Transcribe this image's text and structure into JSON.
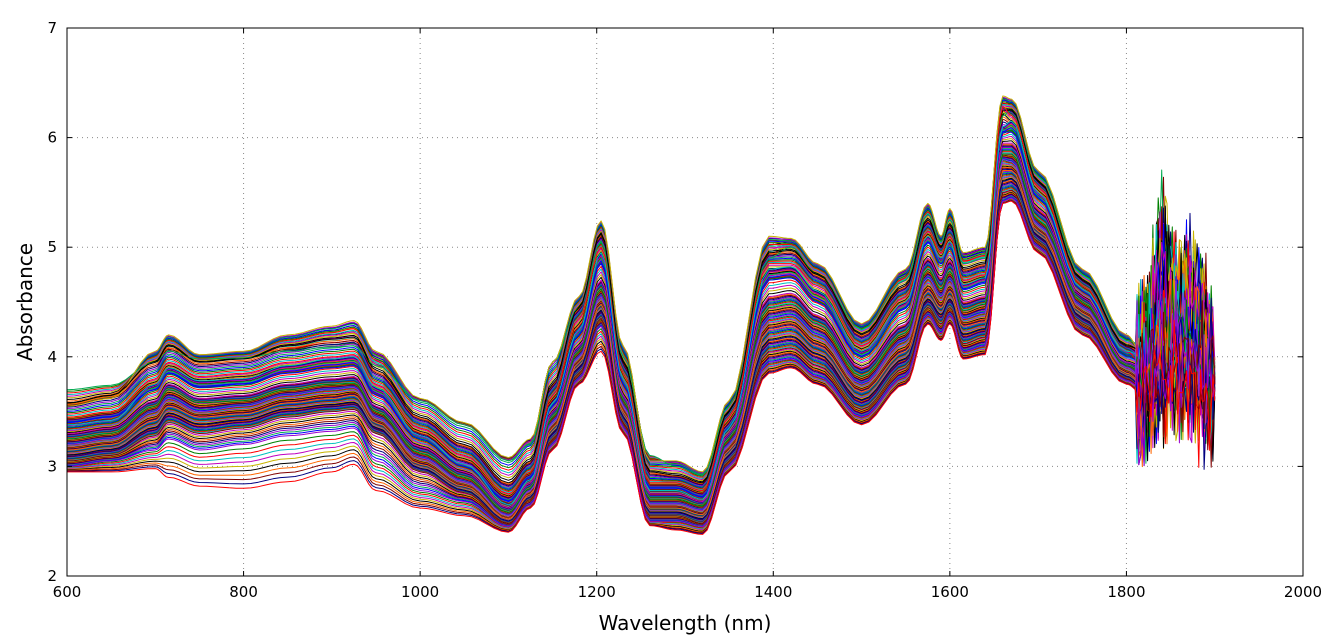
{
  "chart_data": {
    "type": "line",
    "title": "",
    "xlabel": "Wavelength (nm)",
    "ylabel": "Absorbance",
    "xlim": [
      600,
      2000
    ],
    "ylim": [
      2,
      7
    ],
    "xticks": [
      "600",
      "800",
      "1000",
      "1200",
      "1400",
      "1600",
      "1800",
      "2000"
    ],
    "yticks": [
      "2",
      "3",
      "4",
      "5",
      "6",
      "7"
    ],
    "grid": true,
    "legend": "none",
    "x": [
      600,
      650,
      700,
      715,
      750,
      800,
      850,
      900,
      925,
      950,
      1000,
      1050,
      1100,
      1125,
      1150,
      1180,
      1205,
      1230,
      1260,
      1290,
      1320,
      1350,
      1395,
      1420,
      1450,
      1500,
      1550,
      1575,
      1590,
      1600,
      1615,
      1640,
      1660,
      1670,
      1700,
      1750,
      1800,
      1820,
      1840,
      1860,
      1880,
      1900
    ],
    "series_count_note": "",
    "series": [
      {
        "color": "#00a94f",
        "values": [
          3.7,
          3.74,
          3.95,
          4.05,
          3.98,
          3.99,
          4.05,
          4.09,
          4.1,
          3.92,
          3.6,
          3.38,
          3.05,
          3.2,
          3.95,
          4.45,
          5.05,
          4.0,
          3.1,
          3.0,
          2.92,
          3.55,
          4.9,
          5.0,
          4.75,
          4.25,
          4.7,
          5.3,
          5.05,
          5.25,
          4.85,
          4.9,
          6.2,
          6.25,
          5.65,
          4.75,
          4.15,
          4.1,
          4.4,
          4.1,
          4.2,
          3.9
        ]
      },
      {
        "color": "#c8b400",
        "values": [
          3.55,
          3.62,
          4.05,
          4.2,
          4.02,
          4.05,
          4.2,
          4.28,
          4.33,
          4.05,
          3.62,
          3.4,
          3.08,
          3.25,
          3.95,
          4.55,
          5.24,
          4.1,
          3.05,
          3.05,
          2.95,
          3.6,
          5.1,
          5.08,
          4.85,
          4.3,
          4.8,
          5.4,
          5.1,
          5.35,
          4.95,
          5.0,
          6.38,
          6.35,
          5.7,
          4.8,
          4.2,
          4.0,
          5.1,
          4.6,
          4.7,
          4.0
        ]
      },
      {
        "color": "#000000",
        "values": [
          3.58,
          3.65,
          3.95,
          4.1,
          3.95,
          3.98,
          4.1,
          4.16,
          4.18,
          3.88,
          3.45,
          3.2,
          2.85,
          3.05,
          3.75,
          4.45,
          5.12,
          3.95,
          2.95,
          2.92,
          2.85,
          3.5,
          4.95,
          4.97,
          4.75,
          4.2,
          4.65,
          5.25,
          5.0,
          5.2,
          4.8,
          4.85,
          6.25,
          6.25,
          5.6,
          4.7,
          4.1,
          4.05,
          4.8,
          4.3,
          4.5,
          3.8
        ]
      },
      {
        "color": "#ff0000",
        "values": [
          3.45,
          3.5,
          3.8,
          3.95,
          3.82,
          3.85,
          3.95,
          4.0,
          4.02,
          3.75,
          3.35,
          3.1,
          2.75,
          2.95,
          3.65,
          4.35,
          5.0,
          3.85,
          2.85,
          2.85,
          2.78,
          3.45,
          4.85,
          4.85,
          4.65,
          4.1,
          4.55,
          5.15,
          4.95,
          5.1,
          4.7,
          4.75,
          6.28,
          6.2,
          5.55,
          4.65,
          4.05,
          3.9,
          4.4,
          4.1,
          4.0,
          3.7
        ]
      },
      {
        "color": "#0000ff",
        "values": [
          3.4,
          3.45,
          3.7,
          3.85,
          3.72,
          3.75,
          3.85,
          3.9,
          3.92,
          3.65,
          3.25,
          3.0,
          2.68,
          2.9,
          3.55,
          4.2,
          4.85,
          3.75,
          2.8,
          2.8,
          2.72,
          3.35,
          4.7,
          4.72,
          4.5,
          4.0,
          4.45,
          5.05,
          4.85,
          5.0,
          4.62,
          4.68,
          6.05,
          6.05,
          5.45,
          4.6,
          4.0,
          3.95,
          4.6,
          4.2,
          4.3,
          3.85
        ]
      },
      {
        "color": "#00bfbf",
        "values": [
          3.38,
          3.42,
          3.75,
          3.9,
          3.78,
          3.8,
          3.92,
          3.98,
          4.0,
          3.72,
          3.28,
          3.02,
          2.65,
          2.88,
          3.58,
          4.25,
          4.95,
          3.8,
          2.78,
          2.78,
          2.7,
          3.35,
          4.8,
          4.82,
          4.6,
          4.05,
          4.5,
          5.1,
          4.9,
          5.05,
          4.66,
          4.72,
          6.1,
          6.15,
          5.5,
          4.62,
          4.05,
          4.0,
          4.3,
          4.15,
          4.1,
          3.8
        ]
      },
      {
        "color": "#bf00bf",
        "values": [
          3.3,
          3.35,
          3.6,
          3.75,
          3.62,
          3.65,
          3.75,
          3.8,
          3.82,
          3.55,
          3.18,
          2.95,
          2.62,
          2.85,
          3.5,
          4.1,
          4.7,
          3.65,
          2.75,
          2.75,
          2.68,
          3.3,
          4.55,
          4.58,
          4.38,
          3.9,
          4.3,
          4.9,
          4.72,
          4.88,
          4.5,
          4.55,
          5.95,
          5.95,
          5.35,
          4.55,
          3.95,
          3.9,
          4.9,
          4.25,
          4.6,
          3.75
        ]
      },
      {
        "color": "#008000",
        "values": [
          3.25,
          3.3,
          3.55,
          3.7,
          3.58,
          3.6,
          3.7,
          3.75,
          3.76,
          3.5,
          3.12,
          2.9,
          2.58,
          2.8,
          3.45,
          4.05,
          4.62,
          3.6,
          2.7,
          2.7,
          2.64,
          3.25,
          4.45,
          4.48,
          4.3,
          3.82,
          4.22,
          4.8,
          4.62,
          4.78,
          4.42,
          4.48,
          5.85,
          5.85,
          5.25,
          4.5,
          3.92,
          3.85,
          4.2,
          4.35,
          4.15,
          3.9
        ]
      },
      {
        "color": "#8a2be2",
        "values": [
          3.2,
          3.25,
          3.5,
          3.62,
          3.5,
          3.55,
          3.65,
          3.7,
          3.72,
          3.45,
          3.08,
          2.86,
          2.55,
          2.78,
          3.4,
          4.0,
          4.55,
          3.55,
          2.66,
          2.66,
          2.6,
          3.2,
          4.35,
          4.38,
          4.2,
          3.75,
          4.15,
          4.72,
          4.55,
          4.7,
          4.35,
          4.4,
          5.8,
          5.78,
          5.2,
          4.45,
          3.9,
          3.8,
          4.0,
          4.2,
          4.05,
          3.85
        ]
      },
      {
        "color": "#ff6600",
        "values": [
          3.15,
          3.2,
          3.42,
          3.55,
          3.45,
          3.48,
          3.58,
          3.62,
          3.65,
          3.4,
          3.02,
          2.82,
          2.52,
          2.75,
          3.35,
          3.95,
          4.48,
          3.5,
          2.62,
          2.62,
          2.56,
          3.15,
          4.25,
          4.28,
          4.1,
          3.68,
          4.05,
          4.6,
          4.45,
          4.6,
          4.28,
          4.32,
          5.7,
          5.7,
          5.15,
          4.4,
          3.85,
          3.75,
          4.1,
          4.0,
          4.2,
          3.7
        ]
      },
      {
        "color": "#000080",
        "values": [
          3.1,
          3.15,
          3.35,
          3.48,
          3.38,
          3.42,
          3.52,
          3.56,
          3.58,
          3.35,
          2.98,
          2.78,
          2.5,
          2.72,
          3.3,
          3.9,
          4.42,
          3.45,
          2.58,
          2.58,
          2.52,
          3.1,
          4.15,
          4.18,
          4.02,
          3.6,
          3.98,
          4.52,
          4.38,
          4.52,
          4.2,
          4.25,
          5.6,
          5.62,
          5.1,
          4.35,
          3.82,
          3.72,
          3.9,
          4.1,
          4.0,
          3.8
        ]
      },
      {
        "color": "#800000",
        "values": [
          3.05,
          3.1,
          3.28,
          3.4,
          3.3,
          3.35,
          3.45,
          3.5,
          3.52,
          3.3,
          2.95,
          2.76,
          2.48,
          2.7,
          3.25,
          3.85,
          4.35,
          3.4,
          2.55,
          2.55,
          2.48,
          3.05,
          4.05,
          4.08,
          3.92,
          3.52,
          3.9,
          4.45,
          4.3,
          4.45,
          4.12,
          4.18,
          5.5,
          5.52,
          5.05,
          4.3,
          3.8,
          3.7,
          3.8,
          3.95,
          3.9,
          3.75
        ]
      },
      {
        "color": "#9900cc",
        "values": [
          3.0,
          3.05,
          3.15,
          3.25,
          3.15,
          3.2,
          3.28,
          3.32,
          3.35,
          3.05,
          2.78,
          2.68,
          2.45,
          2.65,
          3.2,
          3.8,
          4.28,
          3.35,
          2.5,
          2.5,
          2.45,
          3.0,
          3.95,
          3.98,
          3.82,
          3.45,
          3.82,
          4.38,
          4.22,
          4.38,
          4.05,
          4.1,
          5.42,
          5.45,
          5.0,
          4.25,
          3.78,
          3.7,
          3.85,
          3.9,
          3.95,
          3.7
        ]
      },
      {
        "color": "#ff0000",
        "values": [
          2.95,
          2.95,
          2.98,
          2.9,
          2.82,
          2.8,
          2.86,
          2.95,
          3.02,
          2.78,
          2.62,
          2.55,
          2.4,
          2.62,
          3.15,
          3.75,
          4.05,
          3.3,
          2.46,
          2.42,
          2.38,
          2.95,
          3.85,
          3.9,
          3.75,
          3.38,
          3.75,
          4.3,
          4.15,
          4.3,
          3.98,
          4.02,
          5.4,
          5.42,
          4.95,
          4.2,
          3.75,
          3.65,
          3.8,
          3.85,
          3.7,
          3.6
        ]
      }
    ]
  }
}
